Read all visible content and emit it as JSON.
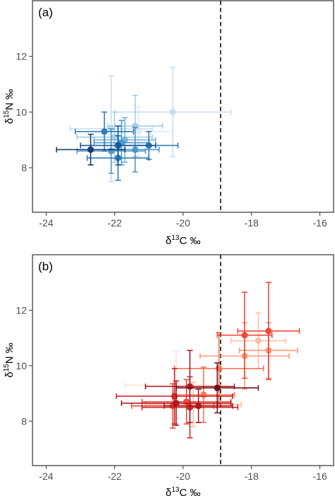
{
  "chart_data": [
    {
      "type": "scatter",
      "panel_label": "(a)",
      "xlabel_prefix": "δ",
      "xlabel_sup": "13",
      "xlabel_suffix": "C ‰",
      "ylabel_prefix": "δ",
      "ylabel_sup": "15",
      "ylabel_suffix": "N ‰",
      "xlim": [
        -24.4,
        -15.6
      ],
      "ylim": [
        6.4,
        14
      ],
      "xticks": [
        -24,
        -22,
        -20,
        -18,
        -16
      ],
      "yticks": [
        8,
        10,
        12
      ],
      "grid": false,
      "reference_line": {
        "x": -18.9,
        "style": "dashed"
      },
      "palette": [
        "#08306b",
        "#08519c",
        "#2171b5",
        "#4292c6",
        "#6baed6",
        "#9ecae1",
        "#c6dbef"
      ],
      "points": [
        {
          "x": -22.7,
          "y": 8.65,
          "xerr": 1.0,
          "yerr": 0.55,
          "color": "#08306b"
        },
        {
          "x": -21.9,
          "y": 8.8,
          "xerr": 1.1,
          "yerr": 0.7,
          "color": "#08519c"
        },
        {
          "x": -22.3,
          "y": 9.3,
          "xerr": 0.85,
          "yerr": 0.7,
          "color": "#2171b5"
        },
        {
          "x": -21.9,
          "y": 8.35,
          "xerr": 0.9,
          "yerr": 0.8,
          "color": "#2171b5"
        },
        {
          "x": -21.0,
          "y": 8.8,
          "xerr": 0.85,
          "yerr": 0.5,
          "color": "#2171b5"
        },
        {
          "x": -21.4,
          "y": 8.65,
          "xerr": 0.7,
          "yerr": 0.8,
          "color": "#4292c6"
        },
        {
          "x": -21.8,
          "y": 8.9,
          "xerr": 0.8,
          "yerr": 0.8,
          "color": "#4292c6"
        },
        {
          "x": -22.1,
          "y": 8.6,
          "xerr": 1.0,
          "yerr": 0.8,
          "color": "#4292c6"
        },
        {
          "x": -21.7,
          "y": 9.0,
          "xerr": 0.9,
          "yerr": 0.8,
          "color": "#6baed6"
        },
        {
          "x": -21.4,
          "y": 9.5,
          "xerr": 0.8,
          "yerr": 1.1,
          "color": "#9ecae1"
        },
        {
          "x": -22.0,
          "y": 9.1,
          "xerr": 1.1,
          "yerr": 0.9,
          "color": "#9ecae1"
        },
        {
          "x": -22.1,
          "y": 9.4,
          "xerr": 1.2,
          "yerr": 1.9,
          "color": "#c6dbef"
        },
        {
          "x": -20.3,
          "y": 10.0,
          "xerr": 1.7,
          "yerr": 1.6,
          "color": "#c6dbef"
        },
        {
          "x": -21.3,
          "y": 9.3,
          "xerr": 1.0,
          "yerr": 0.9,
          "color": "#deebf7"
        }
      ]
    },
    {
      "type": "scatter",
      "panel_label": "(b)",
      "xlabel_prefix": "δ",
      "xlabel_sup": "13",
      "xlabel_suffix": "C ‰",
      "ylabel_prefix": "δ",
      "ylabel_sup": "15",
      "ylabel_suffix": "N ‰",
      "xlim": [
        -24.4,
        -15.6
      ],
      "ylim": [
        6.4,
        14
      ],
      "xticks": [
        -24,
        -22,
        -20,
        -18,
        -16
      ],
      "yticks": [
        8,
        10,
        12
      ],
      "grid": false,
      "reference_line": {
        "x": -18.9,
        "style": "dashed"
      },
      "palette": [
        "#67000d",
        "#a50f15",
        "#cb181d",
        "#ef3b2c",
        "#fb6a4a",
        "#fc9272",
        "#fcbba1"
      ],
      "points": [
        {
          "x": -19.0,
          "y": 9.2,
          "xerr": 1.2,
          "yerr": 0.9,
          "color": "#67000d"
        },
        {
          "x": -19.8,
          "y": 9.25,
          "xerr": 1.3,
          "yerr": 1.3,
          "color": "#a50f15"
        },
        {
          "x": -19.55,
          "y": 8.55,
          "xerr": 1.0,
          "yerr": 0.6,
          "color": "#a50f15"
        },
        {
          "x": -20.2,
          "y": 8.65,
          "xerr": 1.6,
          "yerr": 0.8,
          "color": "#a50f15"
        },
        {
          "x": -20.25,
          "y": 8.9,
          "xerr": 1.7,
          "yerr": 1.0,
          "color": "#cb181d"
        },
        {
          "x": -19.8,
          "y": 8.5,
          "xerr": 1.4,
          "yerr": 1.1,
          "color": "#cb181d"
        },
        {
          "x": -20.3,
          "y": 8.55,
          "xerr": 1.2,
          "yerr": 0.8,
          "color": "#ef3b2c"
        },
        {
          "x": -19.9,
          "y": 8.7,
          "xerr": 1.3,
          "yerr": 0.8,
          "color": "#ef3b2c"
        },
        {
          "x": -19.4,
          "y": 8.95,
          "xerr": 0.9,
          "yerr": 1.0,
          "color": "#fb6a4a"
        },
        {
          "x": -18.2,
          "y": 11.1,
          "xerr": 0.8,
          "yerr": 1.55,
          "color": "#ef3b2c"
        },
        {
          "x": -17.5,
          "y": 11.25,
          "xerr": 0.9,
          "yerr": 1.75,
          "color": "#ef3b2c"
        },
        {
          "x": -18.95,
          "y": 9.9,
          "xerr": 1.3,
          "yerr": 1.3,
          "color": "#fb6a4a"
        },
        {
          "x": -18.2,
          "y": 10.35,
          "xerr": 1.3,
          "yerr": 1.2,
          "color": "#fc9272"
        },
        {
          "x": -17.5,
          "y": 10.55,
          "xerr": 0.85,
          "yerr": 1.0,
          "color": "#fc9272"
        },
        {
          "x": -17.8,
          "y": 10.9,
          "xerr": 0.8,
          "yerr": 1.0,
          "color": "#fcbba1"
        },
        {
          "x": -19.7,
          "y": 8.6,
          "xerr": 1.4,
          "yerr": 0.8,
          "color": "#fcbba1"
        },
        {
          "x": -20.2,
          "y": 9.3,
          "xerr": 1.5,
          "yerr": 1.2,
          "color": "#fee0d2"
        }
      ]
    }
  ]
}
